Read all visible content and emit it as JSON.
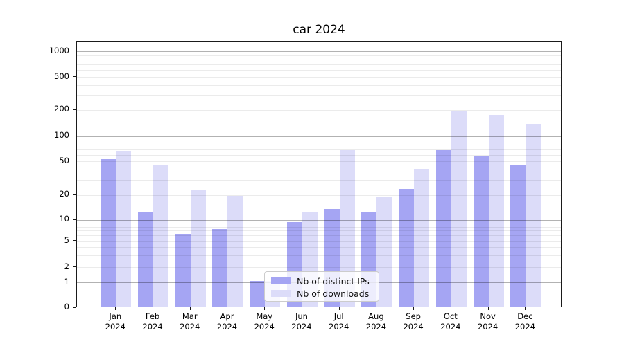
{
  "chart_data": {
    "type": "bar",
    "title": "car 2024",
    "categories": [
      "Jan 2024",
      "Feb 2024",
      "Mar 2024",
      "Apr 2024",
      "May 2024",
      "Jun 2024",
      "Jul 2024",
      "Aug 2024",
      "Sep 2024",
      "Oct 2024",
      "Nov 2024",
      "Dec 2024"
    ],
    "series": [
      {
        "name": "Nb of distinct IPs",
        "color": "#a5a5f3",
        "values": [
          51,
          12,
          6,
          7,
          1,
          9,
          13,
          12,
          23,
          66,
          56,
          44
        ]
      },
      {
        "name": "Nb of downloads",
        "color": "#dcdcf9",
        "values": [
          64,
          44,
          22,
          19,
          1,
          12,
          66,
          18,
          39,
          185,
          170,
          135
        ]
      }
    ],
    "xlabel": "",
    "ylabel": "",
    "yaxis": {
      "ticks": [
        0,
        1,
        2,
        5,
        10,
        20,
        50,
        100,
        200,
        500,
        1000
      ],
      "scale": "log-like with linear zero region",
      "major_grid_values": [
        1,
        10,
        100,
        1000
      ],
      "minor_grid_values": [
        2,
        3,
        4,
        5,
        6,
        7,
        8,
        9,
        20,
        30,
        40,
        50,
        60,
        70,
        80,
        90,
        200,
        300,
        400,
        500,
        600,
        700,
        800,
        900
      ],
      "anchor_fractions": [
        [
          0,
          0.001
        ],
        [
          1,
          0.0961
        ],
        [
          2,
          0.1532
        ],
        [
          5,
          0.2519
        ],
        [
          10,
          0.3299
        ],
        [
          20,
          0.4234
        ],
        [
          50,
          0.5506
        ],
        [
          100,
          0.6442
        ],
        [
          200,
          0.7429
        ],
        [
          500,
          0.8675
        ],
        [
          1000,
          0.9636
        ]
      ]
    },
    "grid": "horizontal, major and minor",
    "legend_position": "inside bottom-center",
    "colors": {
      "bar_distinct_ips": "#a5a5f3",
      "bar_downloads": "#dcdcf9",
      "grid_major": "#b3b3b3",
      "grid_minor": "#ebebeb",
      "spine": "#1a1a1a",
      "text": "#000000",
      "legend_background": "rgba(255,255,255,0.8)",
      "legend_border": "#cccccc"
    }
  }
}
